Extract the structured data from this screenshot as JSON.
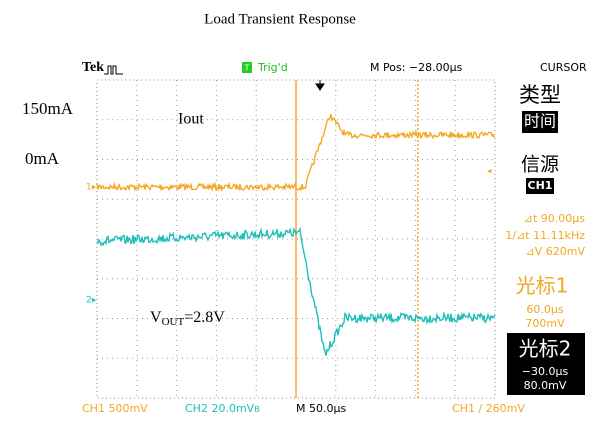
{
  "figure": {
    "title": "Load Transient Response",
    "labels": {
      "current_high": "150mA",
      "current_low": "0mA",
      "current_name": "Iout",
      "vout_main": "V",
      "vout_sub": "OUT",
      "vout_value": "=2.8V"
    },
    "header": {
      "brand": "Tek",
      "trigger": "Trig'd",
      "trigger_icon": "T",
      "position": "M Pos: −28.00µs",
      "mode": "CURSOR"
    },
    "footer": {
      "ch1": "CH1  500mV",
      "ch2": "CH2  20.0mV",
      "bw": "B",
      "timebase": "M 50.0µs",
      "trigger_level": "CH1  ∕  260mV"
    },
    "markers": {
      "ch1": "1▸",
      "ch2": "2▸",
      "level": "◂"
    },
    "panel": {
      "type_label": "类型",
      "type_value": "时间",
      "source_label": "信源",
      "source_value": "CH1",
      "delta_t": "⊿t 90.00µs",
      "inv_delta_t": "1/⊿t 11.11kHz",
      "delta_v": "⊿V 620mV",
      "cursor1": "光标1",
      "cursor1_time": "60.0µs",
      "cursor1_volt": "700mV",
      "cursor2": "光标2",
      "cursor2_time": "−30.0µs",
      "cursor2_volt": "80.0mV"
    }
  }
}
